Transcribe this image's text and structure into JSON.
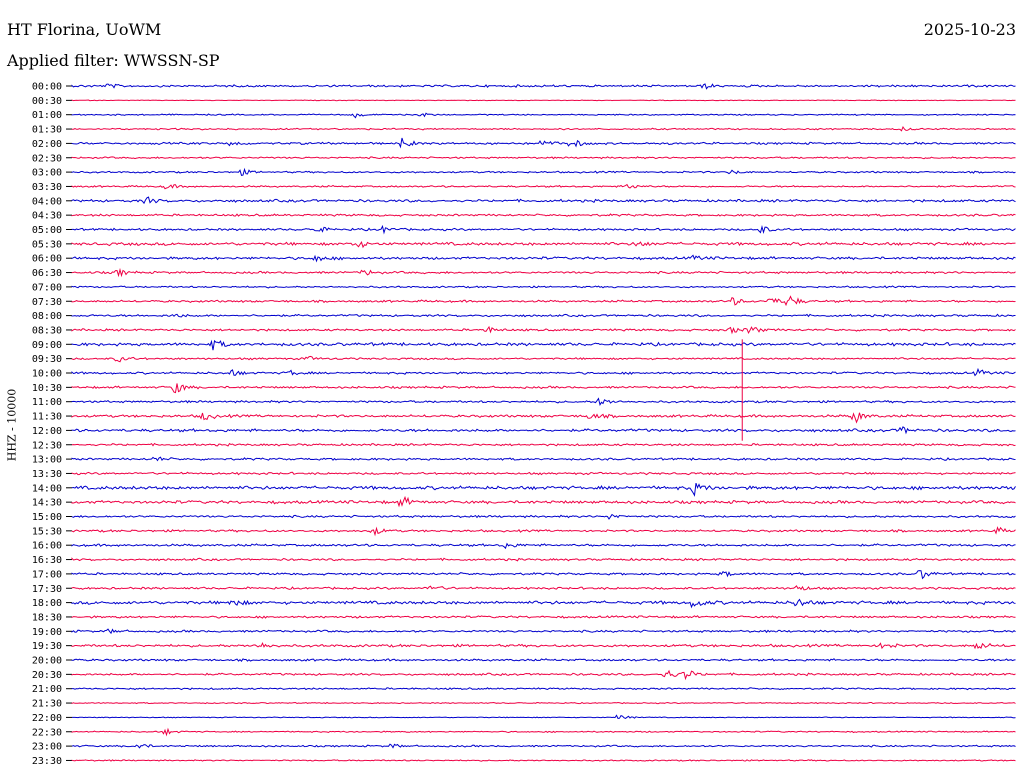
{
  "header": {
    "station": "HT Florina, UoWM",
    "filter": "Applied filter: WWSSN-SP",
    "date": "2025-10-23"
  },
  "chart_data": {
    "type": "line",
    "title": "HT Florina, UoWM",
    "subtitle": "Applied filter: WWSSN-SP",
    "ylabel": "HHZ - 10000",
    "xlabel": "",
    "row_labels": [
      "00:00",
      "00:30",
      "01:00",
      "01:30",
      "02:00",
      "02:30",
      "03:00",
      "03:30",
      "04:00",
      "04:30",
      "05:00",
      "05:30",
      "06:00",
      "06:30",
      "07:00",
      "07:30",
      "08:00",
      "08:30",
      "09:00",
      "09:30",
      "10:00",
      "10:30",
      "11:00",
      "11:30",
      "12:00",
      "12:30",
      "13:00",
      "13:30",
      "14:00",
      "14:30",
      "15:00",
      "15:30",
      "16:00",
      "16:30",
      "17:00",
      "17:30",
      "18:00",
      "18:30",
      "19:00",
      "19:30",
      "20:00",
      "20:30",
      "21:00",
      "21:30",
      "22:00",
      "22:30",
      "23:00",
      "23:30"
    ],
    "colors": {
      "even": "#0000cc",
      "odd": "#ee0044"
    },
    "noise_level": [
      1,
      0.3,
      0.6,
      0.7,
      1,
      0.8,
      0.8,
      0.8,
      1.2,
      1,
      1,
      1.4,
      1.2,
      1,
      0.8,
      1,
      1,
      1,
      1.4,
      0.9,
      1,
      1,
      1,
      1.2,
      1.3,
      1,
      1,
      1,
      1.6,
      1.4,
      1,
      1,
      1.1,
      1,
      1,
      1,
      1.5,
      1,
      1,
      1.2,
      1,
      1,
      0.8,
      0.5,
      0.4,
      0.6,
      0.8,
      0.6
    ],
    "events": [
      {
        "row": 0,
        "x": 0.04,
        "a": 2
      },
      {
        "row": 0,
        "x": 0.67,
        "a": 2.5
      },
      {
        "row": 2,
        "x": 0.3,
        "a": 3
      },
      {
        "row": 2,
        "x": 0.37,
        "a": 2
      },
      {
        "row": 3,
        "x": 0.88,
        "a": 2
      },
      {
        "row": 4,
        "x": 0.17,
        "a": 2
      },
      {
        "row": 4,
        "x": 0.35,
        "a": 5
      },
      {
        "row": 4,
        "x": 0.5,
        "a": 3
      },
      {
        "row": 4,
        "x": 0.53,
        "a": 4
      },
      {
        "row": 6,
        "x": 0.18,
        "a": 3
      },
      {
        "row": 6,
        "x": 0.7,
        "a": 2
      },
      {
        "row": 7,
        "x": 0.1,
        "a": 3
      },
      {
        "row": 7,
        "x": 0.59,
        "a": 3
      },
      {
        "row": 8,
        "x": 0.08,
        "a": 3
      },
      {
        "row": 10,
        "x": 0.26,
        "a": 3
      },
      {
        "row": 10,
        "x": 0.33,
        "a": 3
      },
      {
        "row": 10,
        "x": 0.73,
        "a": 4
      },
      {
        "row": 11,
        "x": 0.3,
        "a": 5
      },
      {
        "row": 11,
        "x": 0.6,
        "a": 3
      },
      {
        "row": 12,
        "x": 0.26,
        "a": 3
      },
      {
        "row": 12,
        "x": 0.66,
        "a": 2
      },
      {
        "row": 13,
        "x": 0.05,
        "a": 3
      },
      {
        "row": 13,
        "x": 0.31,
        "a": 3
      },
      {
        "row": 15,
        "x": 0.7,
        "a": 4
      },
      {
        "row": 15,
        "x": 0.74,
        "a": 4
      },
      {
        "row": 15,
        "x": 0.76,
        "a": 6
      },
      {
        "row": 16,
        "x": 0.11,
        "a": 2
      },
      {
        "row": 17,
        "x": 0.44,
        "a": 3
      },
      {
        "row": 17,
        "x": 0.7,
        "a": 3
      },
      {
        "row": 17,
        "x": 0.72,
        "a": 4
      },
      {
        "row": 18,
        "x": 0.15,
        "a": 5
      },
      {
        "row": 19,
        "x": 0.05,
        "a": 3
      },
      {
        "row": 19,
        "x": 0.25,
        "a": 2
      },
      {
        "row": 20,
        "x": 0.17,
        "a": 3
      },
      {
        "row": 20,
        "x": 0.23,
        "a": 3
      },
      {
        "row": 20,
        "x": 0.96,
        "a": 3
      },
      {
        "row": 21,
        "x": 0.11,
        "a": 6
      },
      {
        "row": 22,
        "x": 0.56,
        "a": 4
      },
      {
        "row": 23,
        "x": 0.14,
        "a": 4
      },
      {
        "row": 23,
        "x": 0.55,
        "a": 3
      },
      {
        "row": 23,
        "x": 0.83,
        "a": 6
      },
      {
        "row": 24,
        "x": 0.88,
        "a": 3
      },
      {
        "row": 26,
        "x": 0.09,
        "a": 2
      },
      {
        "row": 28,
        "x": 0.66,
        "a": 6
      },
      {
        "row": 29,
        "x": 0.35,
        "a": 5
      },
      {
        "row": 30,
        "x": 0.57,
        "a": 3
      },
      {
        "row": 31,
        "x": 0.32,
        "a": 4
      },
      {
        "row": 31,
        "x": 0.98,
        "a": 3
      },
      {
        "row": 32,
        "x": 0.46,
        "a": 3
      },
      {
        "row": 34,
        "x": 0.69,
        "a": 3
      },
      {
        "row": 34,
        "x": 0.9,
        "a": 5
      },
      {
        "row": 35,
        "x": 0.38,
        "a": 3
      },
      {
        "row": 35,
        "x": 0.77,
        "a": 3
      },
      {
        "row": 36,
        "x": 0.17,
        "a": 4
      },
      {
        "row": 36,
        "x": 0.66,
        "a": 5
      },
      {
        "row": 36,
        "x": 0.77,
        "a": 4
      },
      {
        "row": 38,
        "x": 0.04,
        "a": 2
      },
      {
        "row": 39,
        "x": 0.2,
        "a": 3
      },
      {
        "row": 39,
        "x": 0.86,
        "a": 3
      },
      {
        "row": 39,
        "x": 0.96,
        "a": 4
      },
      {
        "row": 41,
        "x": 0.63,
        "a": 5
      },
      {
        "row": 41,
        "x": 0.65,
        "a": 5
      },
      {
        "row": 44,
        "x": 0.58,
        "a": 3
      },
      {
        "row": 45,
        "x": 0.1,
        "a": 3
      },
      {
        "row": 46,
        "x": 0.07,
        "a": 3
      },
      {
        "row": 46,
        "x": 0.34,
        "a": 2
      }
    ],
    "spike": {
      "x": 0.71,
      "row_from": 18,
      "row_to": 25
    }
  }
}
